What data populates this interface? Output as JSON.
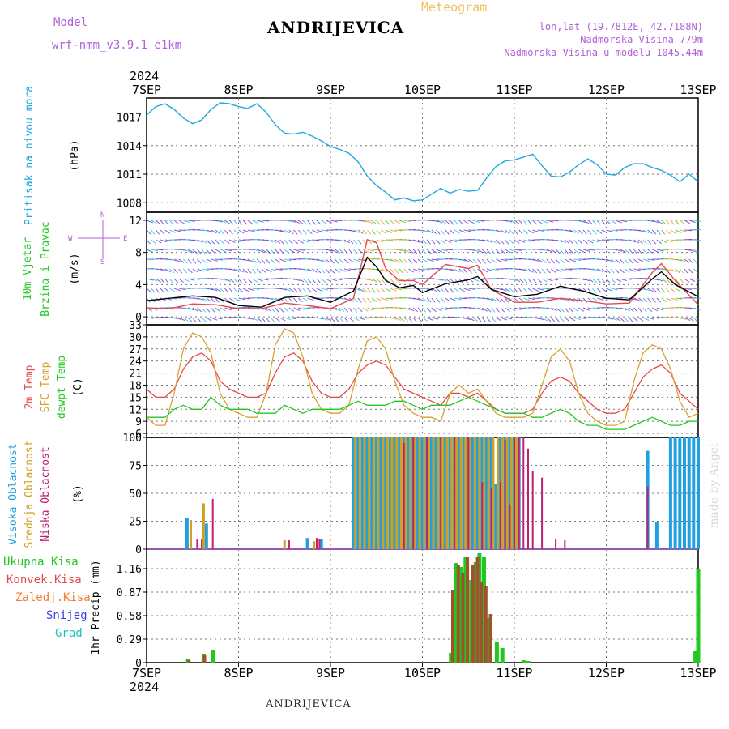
{
  "header": {
    "model_label": "Model",
    "model_name": "wrf-nmm_v3.9.1 e1km",
    "station": "ANDRIJEVICA",
    "meteogram": "Meteogram",
    "lonlat": "lon,lat (19.7812E, 42.7188N)",
    "elevation": "Nadmorska Visina 779m",
    "model_elevation": "Nadmorska Visina u modelu 1045.44m",
    "footer_station": "ANDRIJEVICA",
    "credit": "made by Angel"
  },
  "colors": {
    "model": "#b060d8",
    "meteogram": "#f0c060",
    "pressure": "#20a8e0",
    "temp2m": "#e84848",
    "sfc": "#d8a030",
    "dewpt": "#20c820",
    "high_cloud": "#20a0e0",
    "mid_cloud": "#d0a020",
    "low_cloud": "#c02070"
  },
  "chart_data": [
    {
      "type": "line",
      "panel": "pressure",
      "x_tick_labels": [
        "7SEP",
        "8SEP",
        "9SEP",
        "10SEP",
        "11SEP",
        "12SEP",
        "13SEP"
      ],
      "year_label": "2024",
      "ylabel": [
        "Pritisak na nivou mora",
        "(hPa)"
      ],
      "yticks": [
        "1008",
        "1011",
        "1014",
        "1017"
      ],
      "ylim": [
        1007,
        1019
      ],
      "series": [
        {
          "x": [
            7.0,
            7.1,
            7.2,
            7.3,
            7.4,
            7.5,
            7.6,
            7.7,
            7.8,
            7.9,
            8.0,
            8.1,
            8.2,
            8.3,
            8.4,
            8.5,
            8.6,
            8.7,
            8.8,
            8.9,
            9.0,
            9.1,
            9.2,
            9.3,
            9.4,
            9.5,
            9.6,
            9.7,
            9.8,
            9.9,
            10.0,
            10.1,
            10.2,
            10.3,
            10.4,
            10.5,
            10.6,
            10.7,
            10.8,
            10.9,
            11.0,
            11.1,
            11.2,
            11.3,
            11.4,
            11.5,
            11.6,
            11.7,
            11.8,
            11.9,
            12.0,
            12.1,
            12.2,
            12.3,
            12.4,
            12.5,
            12.6,
            12.7,
            12.8,
            12.9,
            13.0
          ],
          "y": [
            1017.2,
            1018.1,
            1018.4,
            1017.8,
            1016.9,
            1016.3,
            1016.7,
            1017.8,
            1018.5,
            1018.4,
            1018.1,
            1017.9,
            1018.4,
            1017.5,
            1016.2,
            1015.3,
            1015.2,
            1015.4,
            1015.0,
            1014.5,
            1013.9,
            1013.6,
            1013.2,
            1012.3,
            1010.8,
            1009.8,
            1009.1,
            1008.3,
            1008.5,
            1008.2,
            1008.3,
            1008.9,
            1009.5,
            1009.0,
            1009.4,
            1009.2,
            1009.3,
            1010.6,
            1011.8,
            1012.4,
            1012.5,
            1012.8,
            1013.1,
            1011.9,
            1010.8,
            1010.7,
            1011.2,
            1012.0,
            1012.6,
            1012.0,
            1011.0,
            1010.9,
            1011.7,
            1012.1,
            1012.1,
            1011.7,
            1011.4,
            1010.9,
            1010.2,
            1011.0,
            1010.2
          ]
        }
      ]
    },
    {
      "type": "line",
      "panel": "wind",
      "ylabel": [
        "10m Vjetar",
        "Brzina i Pravac",
        "(m/s)"
      ],
      "compass": [
        "N",
        "W",
        "E",
        "S"
      ],
      "yticks": [
        "0",
        "4",
        "8",
        "12"
      ],
      "ylim": [
        -1,
        13
      ],
      "series": [
        {
          "name": "mean",
          "x": [
            7.0,
            7.25,
            7.5,
            7.75,
            8.0,
            8.25,
            8.5,
            8.75,
            9.0,
            9.25,
            9.4,
            9.5,
            9.6,
            9.75,
            9.9,
            10.0,
            10.25,
            10.5,
            10.6,
            10.75,
            11.0,
            11.25,
            11.5,
            11.75,
            12.0,
            12.25,
            12.5,
            12.6,
            12.75,
            13.0
          ],
          "y": [
            2.0,
            2.3,
            2.6,
            2.4,
            1.4,
            1.2,
            2.4,
            2.6,
            1.8,
            3.2,
            7.4,
            6.2,
            4.5,
            3.6,
            3.9,
            3.0,
            4.1,
            4.6,
            5.0,
            3.4,
            2.5,
            2.8,
            3.8,
            3.2,
            2.3,
            2.1,
            4.7,
            5.6,
            4.0,
            2.5
          ]
        },
        {
          "name": "gust",
          "x": [
            7.0,
            7.25,
            7.5,
            7.75,
            8.0,
            8.25,
            8.5,
            8.75,
            9.0,
            9.25,
            9.4,
            9.5,
            9.6,
            9.75,
            9.9,
            10.0,
            10.25,
            10.5,
            10.6,
            10.75,
            11.0,
            11.25,
            11.5,
            11.75,
            12.0,
            12.25,
            12.5,
            12.6,
            12.75,
            13.0
          ],
          "y": [
            1.1,
            1.0,
            1.6,
            1.5,
            1.0,
            1.0,
            1.7,
            1.4,
            1.0,
            2.3,
            9.6,
            9.2,
            6.0,
            4.5,
            4.5,
            4.0,
            6.5,
            6.0,
            6.4,
            3.4,
            1.8,
            1.8,
            2.3,
            2.0,
            1.6,
            1.7,
            5.5,
            6.6,
            4.5,
            1.5
          ]
        }
      ]
    },
    {
      "type": "line",
      "panel": "temperature",
      "ylabel": [
        "2m Temp",
        "SFC Temp",
        "dewpt Temp",
        "(C)"
      ],
      "yticks": [
        "6",
        "9",
        "12",
        "15",
        "18",
        "21",
        "24",
        "27",
        "30",
        "33"
      ],
      "ylim": [
        5,
        33
      ],
      "series": [
        {
          "name": "2m Temp",
          "x": [
            7.0,
            7.1,
            7.2,
            7.3,
            7.4,
            7.5,
            7.6,
            7.7,
            7.8,
            7.9,
            8.0,
            8.1,
            8.2,
            8.3,
            8.4,
            8.5,
            8.6,
            8.7,
            8.8,
            8.9,
            9.0,
            9.1,
            9.2,
            9.3,
            9.4,
            9.5,
            9.6,
            9.7,
            9.8,
            9.9,
            10.0,
            10.1,
            10.2,
            10.3,
            10.4,
            10.5,
            10.6,
            10.7,
            10.8,
            10.9,
            11.0,
            11.1,
            11.2,
            11.3,
            11.4,
            11.5,
            11.6,
            11.7,
            11.8,
            11.9,
            12.0,
            12.1,
            12.2,
            12.3,
            12.4,
            12.5,
            12.6,
            12.7,
            12.8,
            12.9,
            13.0
          ],
          "y": [
            17,
            15,
            15,
            17,
            22,
            25,
            26,
            24,
            19,
            17,
            16,
            15,
            15,
            16,
            21,
            25,
            26,
            24,
            19,
            16,
            15,
            15,
            17,
            21,
            23,
            24,
            23,
            20,
            17,
            16,
            15,
            14,
            13,
            16,
            16,
            15,
            16,
            14,
            12,
            11,
            11,
            11,
            12,
            16,
            19,
            20,
            19,
            16,
            14,
            12,
            11,
            11,
            12,
            16,
            20,
            22,
            23,
            21,
            16,
            14,
            12
          ]
        },
        {
          "name": "SFC Temp",
          "x": [
            7.0,
            7.1,
            7.2,
            7.3,
            7.4,
            7.5,
            7.6,
            7.7,
            7.8,
            7.9,
            8.0,
            8.1,
            8.2,
            8.3,
            8.4,
            8.5,
            8.6,
            8.7,
            8.8,
            8.9,
            9.0,
            9.1,
            9.2,
            9.3,
            9.4,
            9.5,
            9.6,
            9.7,
            9.8,
            9.9,
            10.0,
            10.1,
            10.2,
            10.3,
            10.4,
            10.5,
            10.6,
            10.7,
            10.8,
            10.9,
            11.0,
            11.1,
            11.2,
            11.3,
            11.4,
            11.5,
            11.6,
            11.7,
            11.8,
            11.9,
            12.0,
            12.1,
            12.2,
            12.3,
            12.4,
            12.5,
            12.6,
            12.7,
            12.8,
            12.9,
            13.0
          ],
          "y": [
            10,
            8,
            8,
            16,
            27,
            31,
            30,
            26,
            16,
            12,
            11,
            10,
            10,
            16,
            28,
            32,
            31,
            25,
            16,
            12,
            11,
            11,
            13,
            22,
            29,
            30,
            27,
            19,
            13,
            11,
            10,
            10,
            9,
            16,
            18,
            16,
            17,
            14,
            11,
            10,
            10,
            10,
            11,
            18,
            25,
            27,
            24,
            16,
            11,
            9,
            8,
            8,
            9,
            19,
            26,
            28,
            27,
            22,
            14,
            10,
            11
          ]
        },
        {
          "name": "dewpt Temp",
          "x": [
            7.0,
            7.1,
            7.2,
            7.3,
            7.4,
            7.5,
            7.6,
            7.7,
            7.8,
            7.9,
            8.0,
            8.1,
            8.2,
            8.3,
            8.4,
            8.5,
            8.6,
            8.7,
            8.8,
            8.9,
            9.0,
            9.1,
            9.2,
            9.3,
            9.4,
            9.5,
            9.6,
            9.7,
            9.8,
            9.9,
            10.0,
            10.1,
            10.2,
            10.3,
            10.4,
            10.5,
            10.6,
            10.7,
            10.8,
            10.9,
            11.0,
            11.1,
            11.2,
            11.3,
            11.4,
            11.5,
            11.6,
            11.7,
            11.8,
            11.9,
            12.0,
            12.1,
            12.2,
            12.3,
            12.4,
            12.5,
            12.6,
            12.7,
            12.8,
            12.9,
            13.0
          ],
          "y": [
            10,
            10,
            10,
            12,
            13,
            12,
            12,
            15,
            13,
            12,
            12,
            12,
            11,
            11,
            11,
            13,
            12,
            11,
            12,
            12,
            12,
            12,
            13,
            14,
            13,
            13,
            13,
            14,
            14,
            13,
            12,
            13,
            13,
            13,
            14,
            15,
            14,
            13,
            12,
            11,
            11,
            11,
            10,
            10,
            11,
            12,
            11,
            9,
            8,
            8,
            7,
            7,
            7,
            8,
            9,
            10,
            9,
            8,
            8,
            9,
            9
          ]
        }
      ]
    },
    {
      "type": "bar",
      "panel": "clouds",
      "ylabel": [
        "Visoka Oblacnost",
        "Srednja Oblacnost",
        "Niska Oblacnost",
        "(%)"
      ],
      "yticks": [
        "0",
        "25",
        "50",
        "75",
        "100"
      ],
      "ylim": [
        0,
        100
      ],
      "series": [
        {
          "name": "Visoka Oblacnost",
          "x": [
            7.44,
            7.65,
            8.75,
            8.9,
            9.25,
            9.3,
            9.35,
            9.4,
            9.45,
            9.5,
            9.55,
            9.6,
            9.65,
            9.7,
            9.75,
            9.8,
            9.85,
            9.9,
            9.95,
            10.0,
            10.05,
            10.1,
            10.15,
            10.2,
            10.25,
            10.3,
            10.35,
            10.4,
            10.45,
            10.5,
            10.55,
            10.6,
            10.65,
            10.7,
            10.75,
            10.8,
            10.85,
            10.9,
            10.95,
            11.0,
            11.05,
            12.45,
            12.55,
            12.7,
            12.75,
            12.8,
            12.85,
            12.9,
            12.95,
            13.0
          ],
          "values": [
            28,
            23,
            10,
            9,
            100,
            100,
            100,
            100,
            100,
            100,
            100,
            100,
            100,
            100,
            100,
            100,
            100,
            100,
            100,
            100,
            100,
            100,
            100,
            100,
            100,
            100,
            100,
            100,
            100,
            100,
            100,
            100,
            100,
            100,
            100,
            58,
            100,
            100,
            100,
            100,
            100,
            88,
            24,
            100,
            100,
            100,
            100,
            100,
            100,
            100
          ]
        },
        {
          "name": "Srednja Oblacnost",
          "x": [
            7.48,
            7.62,
            8.5,
            8.82,
            9.27,
            9.32,
            9.37,
            9.42,
            9.47,
            9.52,
            9.57,
            9.62,
            9.67,
            9.72,
            9.77,
            9.82,
            9.87,
            9.92,
            9.97,
            10.02,
            10.07,
            10.12,
            10.17,
            10.22,
            10.27,
            10.32,
            10.37,
            10.42,
            10.47,
            10.52,
            10.57,
            10.62,
            10.67,
            10.72,
            10.77,
            10.82,
            10.87,
            10.92,
            10.97,
            11.02
          ],
          "values": [
            26,
            41,
            8,
            7,
            100,
            100,
            100,
            100,
            100,
            100,
            100,
            100,
            100,
            100,
            100,
            100,
            100,
            100,
            100,
            100,
            100,
            100,
            100,
            100,
            100,
            100,
            100,
            100,
            100,
            100,
            100,
            100,
            100,
            100,
            100,
            100,
            100,
            100,
            100,
            100
          ]
        },
        {
          "name": "Niska Oblacnost",
          "x": [
            7.55,
            7.6,
            7.72,
            8.55,
            8.85,
            8.88,
            9.8,
            9.9,
            10.05,
            10.2,
            10.35,
            10.5,
            10.65,
            10.75,
            10.85,
            10.9,
            10.95,
            11.0,
            11.05,
            11.1,
            11.15,
            11.2,
            11.3,
            11.45,
            11.55,
            12.45
          ],
          "values": [
            9,
            9,
            45,
            8,
            10,
            9,
            95,
            100,
            100,
            100,
            100,
            100,
            60,
            55,
            60,
            98,
            40,
            100,
            100,
            100,
            90,
            70,
            64,
            9,
            8,
            56
          ]
        }
      ]
    },
    {
      "type": "bar",
      "panel": "precipitation",
      "ylabel": [
        "1hr Precip (mm)"
      ],
      "legend": [
        "Ukupna Kisa",
        "Konvek.Kisa",
        "Zaledj.Kisa",
        "Snijeg",
        "Grad"
      ],
      "yticks": [
        "0",
        "0.29",
        "0.58",
        "0.87",
        "1.16"
      ],
      "ylim": [
        0,
        1.4
      ],
      "series": [
        {
          "name": "Ukupna Kisa",
          "x": [
            7.45,
            7.62,
            7.72,
            10.31,
            10.37,
            10.42,
            10.47,
            10.53,
            10.58,
            10.62,
            10.67,
            10.72,
            10.81,
            10.87,
            11.1,
            11.15,
            12.97,
            13.0
          ],
          "values": [
            0.04,
            0.1,
            0.16,
            0.12,
            1.23,
            1.18,
            1.3,
            1.02,
            1.24,
            1.35,
            1.3,
            0.55,
            0.25,
            0.18,
            0.03,
            0.02,
            0.14,
            1.15
          ]
        },
        {
          "name": "Konvek.Kisa",
          "x": [
            7.46,
            7.63,
            10.33,
            10.39,
            10.44,
            10.49,
            10.55,
            10.6,
            10.64,
            10.69,
            10.74
          ],
          "values": [
            0.03,
            0.09,
            0.9,
            1.2,
            1.1,
            1.3,
            1.2,
            1.3,
            1.0,
            0.95,
            0.6
          ]
        }
      ]
    }
  ]
}
